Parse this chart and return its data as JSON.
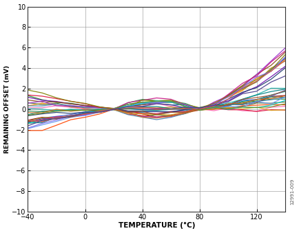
{
  "xlim": [
    -40,
    140
  ],
  "ylim": [
    -10,
    10
  ],
  "xticks": [
    -40,
    0,
    40,
    80,
    120
  ],
  "yticks": [
    -10,
    -8,
    -6,
    -4,
    -2,
    0,
    2,
    4,
    6,
    8,
    10
  ],
  "xlabel": "TEMPERATURE (°C)",
  "ylabel": "REMAINING OFFSET (mV)",
  "x_temps": [
    -40,
    -30,
    -20,
    -10,
    0,
    10,
    20,
    30,
    40,
    50,
    60,
    70,
    80,
    90,
    100,
    110,
    120,
    130,
    140
  ],
  "watermark": "12991-009",
  "background_color": "#ffffff",
  "grid_color": "#999999",
  "line_colors": [
    "#FF8C00",
    "#1E4FA0",
    "#228B22",
    "#8B0000",
    "#6A0DAD",
    "#008B8B",
    "#FF69B4",
    "#8B4513",
    "#556B2F",
    "#4169E1",
    "#FF4500",
    "#2E8B57",
    "#4682B4",
    "#B8860B",
    "#9932CC",
    "#20B2AA",
    "#DC143C",
    "#1F3A70",
    "#DAA520",
    "#008080",
    "#C71585",
    "#6495ED",
    "#808000",
    "#D2691E",
    "#7B68EE",
    "#00CED1",
    "#A0522D",
    "#6B8E23",
    "#CD5C5C",
    "#483D8B"
  ],
  "seed": 99,
  "n_lines": 30,
  "cal1": 20,
  "cal2": 80,
  "x_min": -40,
  "x_max": 140
}
